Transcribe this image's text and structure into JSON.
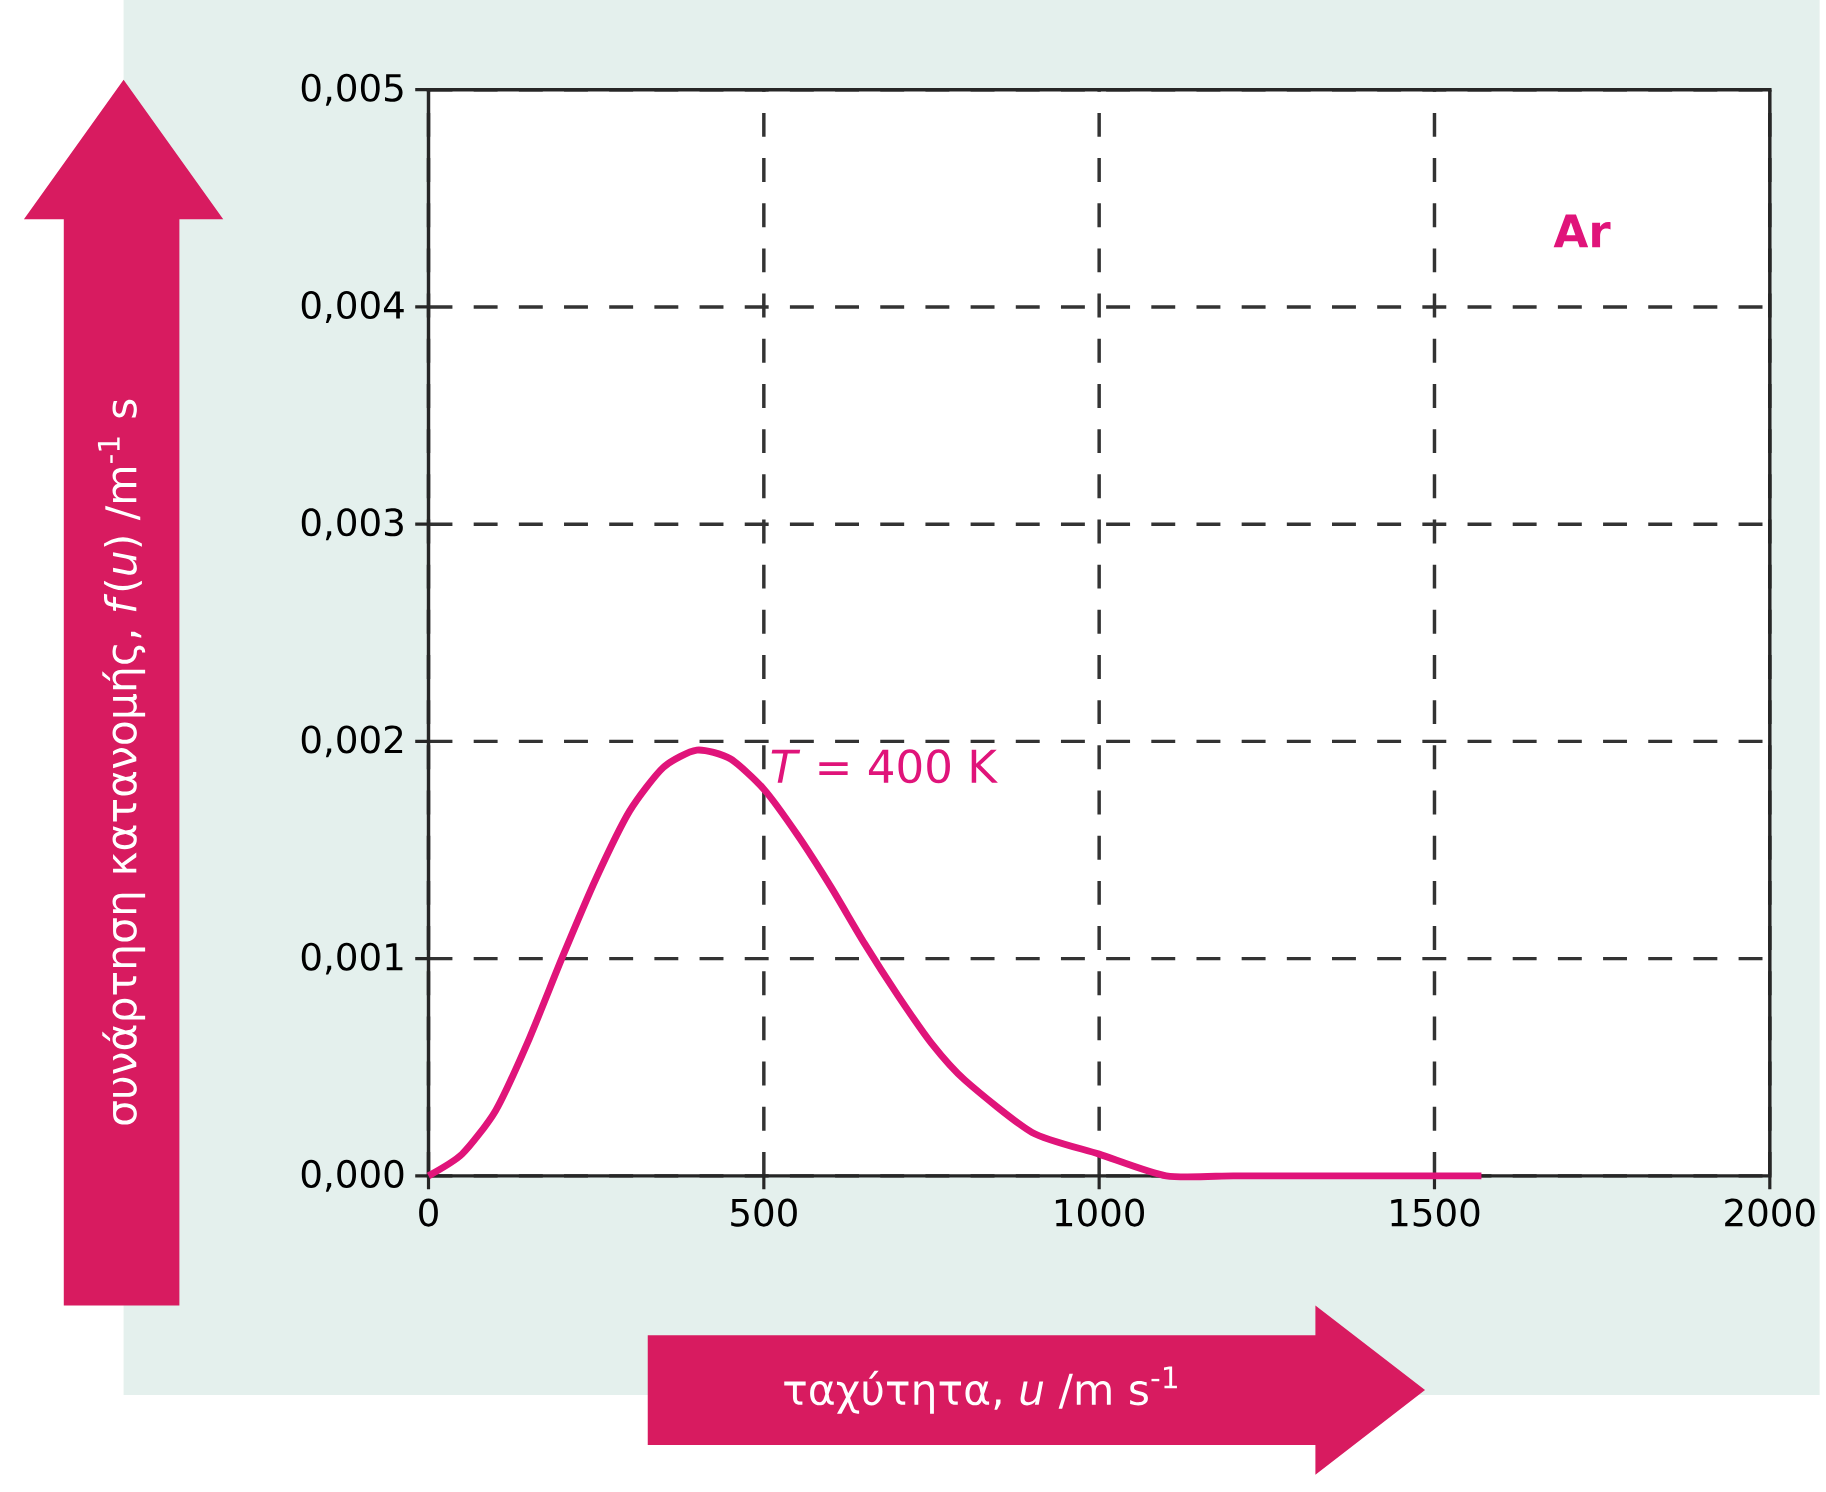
{
  "chart_data": {
    "type": "line",
    "xlabel": "ταχύτητα, *u* /m s$^{-1}$",
    "ylabel": "συνάρτηση κατανομής, *f*(*u*) /m$^{-1}$ s",
    "annotations": [
      "Ar"
    ],
    "x": [
      0,
      50,
      100,
      150,
      200,
      250,
      300,
      350,
      400,
      450,
      500,
      550,
      600,
      650,
      700,
      750,
      800,
      900,
      1000,
      1100,
      1200,
      1300,
      1400,
      1570
    ],
    "series": [
      {
        "name": "*T* = 400 K",
        "color": "#e0147a",
        "values": [
          0,
          0.0001,
          0.0003,
          0.00063,
          0.00101,
          0.00137,
          0.00168,
          0.00188,
          0.00196,
          0.00192,
          0.00178,
          0.00157,
          0.00133,
          0.00107,
          0.00083,
          0.00061,
          0.00044,
          0.0002,
          0.0001,
          0,
          0,
          0,
          0,
          0
        ]
      }
    ],
    "xlim": [
      0,
      2000
    ],
    "ylim": [
      0,
      0.005
    ],
    "xticks": [
      0,
      500,
      1000,
      1500,
      2000
    ],
    "yticks": [
      {
        "value": 0,
        "label": "0,000"
      },
      {
        "value": 0.001,
        "label": "0,001"
      },
      {
        "value": 0.002,
        "label": "0,002"
      },
      {
        "value": 0.003,
        "label": "0,003"
      },
      {
        "value": 0.004,
        "label": "0,004"
      },
      {
        "value": 0.005,
        "label": "0,005"
      }
    ],
    "grid": true,
    "line_style": "solid",
    "marker": "none",
    "legend": false
  }
}
